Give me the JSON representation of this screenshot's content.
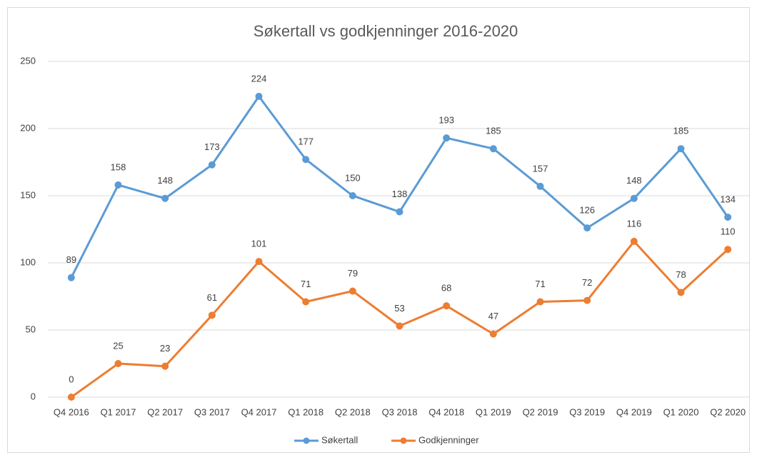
{
  "chart_data": {
    "type": "line",
    "title": "Søkertall vs godkjenninger  2016-2020",
    "categories": [
      "Q4 2016",
      "Q1 2017",
      "Q2 2017",
      "Q3 2017",
      "Q4 2017",
      "Q1 2018",
      "Q2 2018",
      "Q3 2018",
      "Q4 2018",
      "Q1 2019",
      "Q2 2019",
      "Q3 2019",
      "Q4 2019",
      "Q1 2020",
      "Q2 2020"
    ],
    "series": [
      {
        "name": "Søkertall",
        "color": "#5b9bd5",
        "values": [
          89,
          158,
          148,
          173,
          224,
          177,
          150,
          138,
          193,
          185,
          157,
          126,
          148,
          185,
          134
        ]
      },
      {
        "name": "Godkjenninger",
        "color": "#ed7d31",
        "values": [
          0,
          25,
          23,
          61,
          101,
          71,
          79,
          53,
          68,
          47,
          71,
          72,
          116,
          78,
          110
        ]
      }
    ],
    "ylim": [
      0,
      250
    ],
    "yticks": [
      0,
      50,
      100,
      150,
      200,
      250
    ],
    "grid": true,
    "legend": "bottom"
  }
}
